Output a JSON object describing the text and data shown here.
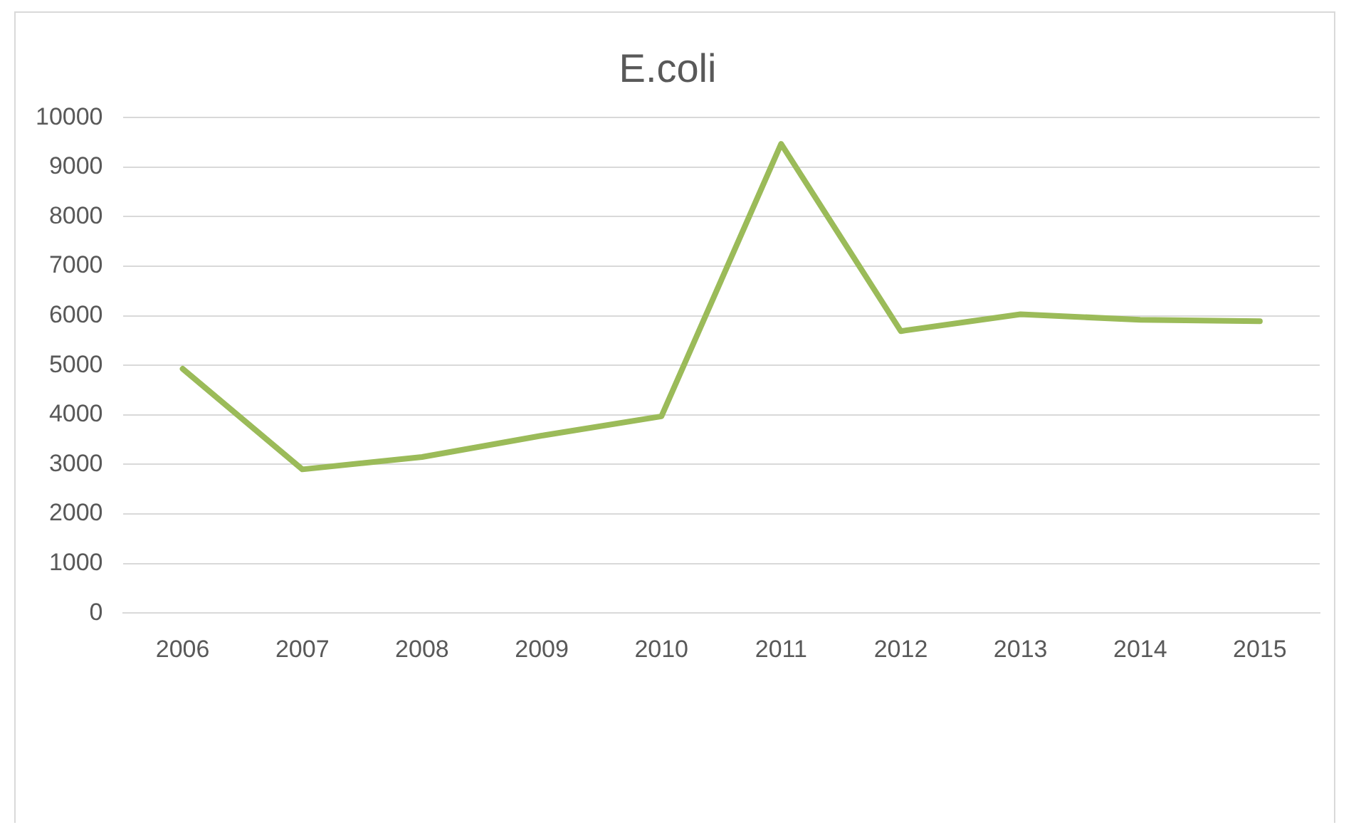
{
  "chart_data": {
    "type": "line",
    "title": "E.coli",
    "categories": [
      "2006",
      "2007",
      "2008",
      "2009",
      "2010",
      "2011",
      "2012",
      "2013",
      "2014",
      "2015"
    ],
    "series": [
      {
        "color": "#9bbb59",
        "values": [
          4930,
          2900,
          3150,
          3580,
          3970,
          9470,
          5690,
          6030,
          5920,
          5890
        ]
      }
    ],
    "ylim": [
      0,
      10000
    ],
    "yticks": [
      0,
      1000,
      2000,
      3000,
      4000,
      5000,
      6000,
      7000,
      8000,
      9000,
      10000
    ],
    "grid": "y",
    "legend": false,
    "marker": "none",
    "line_style": "solid"
  }
}
